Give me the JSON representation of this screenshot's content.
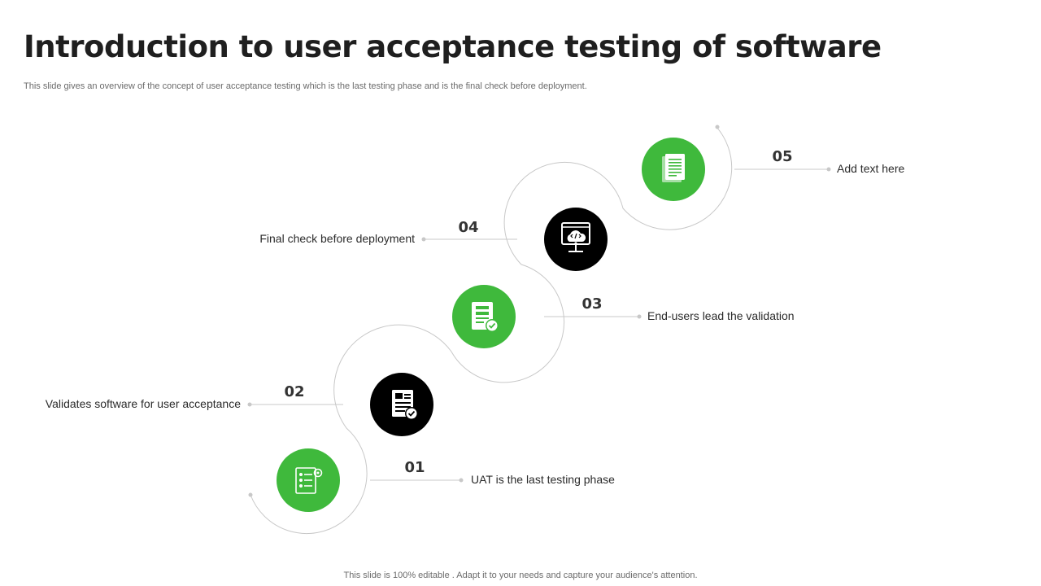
{
  "header": {
    "title": "Introduction to user acceptance testing of software",
    "subtitle": "This slide gives an overview of the concept of user acceptance testing which is the last testing phase and is the final check before deployment."
  },
  "colors": {
    "green": "#3fb93c",
    "black": "#000000",
    "line": "#c8c8c8"
  },
  "steps": [
    {
      "number": "01",
      "label": "UAT is the last testing phase",
      "icon": "checklist-icon",
      "color": "green"
    },
    {
      "number": "02",
      "label": "Validates software for user acceptance",
      "icon": "document-check-icon",
      "color": "black"
    },
    {
      "number": "03",
      "label": "End-users lead the validation",
      "icon": "form-check-icon",
      "color": "green"
    },
    {
      "number": "04",
      "label": "Final check before deployment",
      "icon": "cloud-code-monitor-icon",
      "color": "black"
    },
    {
      "number": "05",
      "label": "Add text here",
      "icon": "document-icon",
      "color": "green"
    }
  ],
  "footer": {
    "text": "This slide is 100% editable . Adapt it to your needs and capture your audience's attention."
  }
}
